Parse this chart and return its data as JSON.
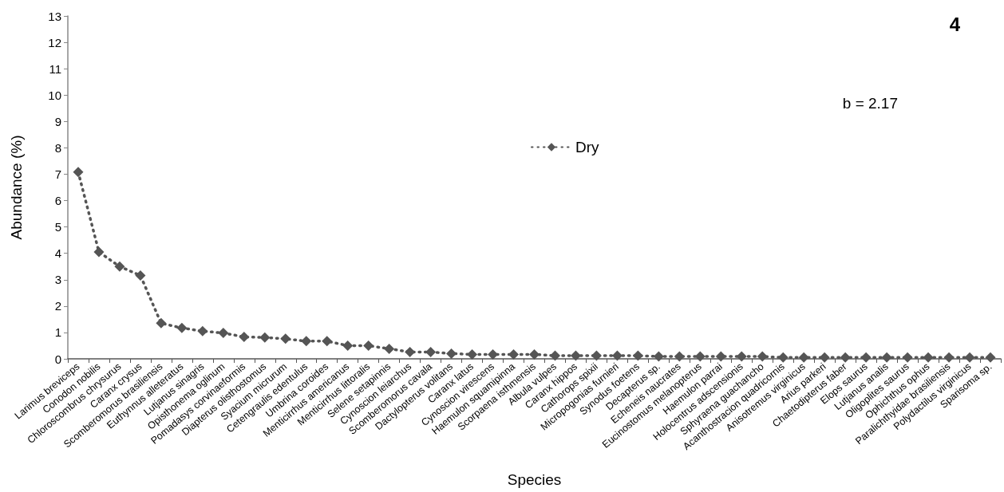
{
  "chart_data": {
    "type": "line",
    "xlabel": "Species",
    "ylabel": "Abundance (%)",
    "categories": [
      "Larimus breviceps",
      "Conodon nobilis",
      "Chloroscombrus chrysurus",
      "Caranx crysus",
      "Scomberomorus brasiliensis",
      "Euthynnus alleteratus",
      "Lutjanus sinagris",
      "Opisthonema oglinum",
      "Pomadasys corvinaeformis",
      "Diapterus olisthostomus",
      "Syacium micrurum",
      "Cetengraulis edentulus",
      "Umbrina coroides",
      "Menticirrhus americanus",
      "Menticirrhus littoralis",
      "Selene setapinnis",
      "Cynoscion leiarchus",
      "Scomberomorus cavala",
      "Dactylopterus volitans",
      "Caranx latus",
      "Cynoscion virescens",
      "Haemulon squamipinna",
      "Scorpaena isthmensis",
      "Albula vulpes",
      "Caranx hippos",
      "Cathorops spixii",
      "Micropogonias furnieri",
      "Synodus foetens",
      "Decapterus sp.",
      "Echeneis naucrates",
      "Eucinostomus melanopterus",
      "Haemulon parrai",
      "Holocentrus adscensionis",
      "Sphyraena guachancho",
      "Acanthostracion quadricornis",
      "Anisotremus virginicus",
      "Arius parkeri",
      "Chaetodipterus faber",
      "Elops saurus",
      "Lutjanus analis",
      "Oligoplites saurus",
      "Ophichthus ophus",
      "Paralichthyidae brasiliensis",
      "Polydactilus virginicus",
      "Sparisoma sp."
    ],
    "series": [
      {
        "name": "Dry",
        "color": "#555555",
        "values": [
          7.08,
          4.05,
          3.5,
          3.16,
          1.35,
          1.17,
          1.05,
          0.98,
          0.83,
          0.81,
          0.76,
          0.67,
          0.67,
          0.5,
          0.5,
          0.38,
          0.26,
          0.26,
          0.2,
          0.17,
          0.17,
          0.17,
          0.17,
          0.12,
          0.12,
          0.12,
          0.12,
          0.12,
          0.09,
          0.09,
          0.09,
          0.09,
          0.09,
          0.09,
          0.05,
          0.05,
          0.05,
          0.05,
          0.05,
          0.05,
          0.05,
          0.05,
          0.05,
          0.05,
          0.05
        ]
      }
    ],
    "ylim": [
      0,
      13
    ],
    "yticks": [
      0,
      1,
      2,
      3,
      4,
      5,
      6,
      7,
      8,
      9,
      10,
      11,
      12,
      13
    ],
    "marker": "diamond",
    "line_style": "dotted",
    "legend": "top",
    "grid": false,
    "annotations": [
      "b = 2.17",
      "4"
    ]
  }
}
